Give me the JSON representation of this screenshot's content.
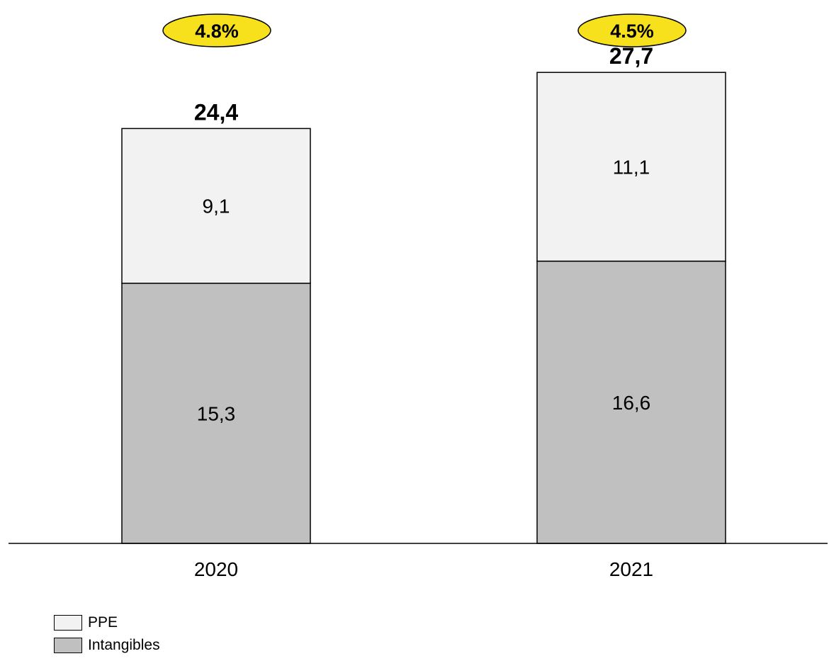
{
  "chart_data": {
    "type": "bar",
    "stacked": true,
    "categories": [
      "2020",
      "2021"
    ],
    "series": [
      {
        "name": "Intangibles",
        "values": [
          15.3,
          16.6
        ],
        "labels": [
          "15,3",
          "16,6"
        ],
        "color": "#c0c0c0"
      },
      {
        "name": "PPE",
        "values": [
          9.1,
          11.1
        ],
        "labels": [
          "9,1",
          "11,1"
        ],
        "color": "#f2f2f2"
      }
    ],
    "totals": [
      24.4,
      27.7
    ],
    "total_labels": [
      "24,4",
      "27,7"
    ],
    "badges": [
      "4.8%",
      "4.5%"
    ],
    "badge_color": "#f7e01c",
    "title": "",
    "xlabel": "",
    "ylabel": "",
    "ylim": [
      0,
      30
    ],
    "grid": false,
    "legend_position": "bottom-left"
  },
  "legend": {
    "items": [
      {
        "label": "PPE",
        "color": "#f2f2f2"
      },
      {
        "label": "Intangibles",
        "color": "#c0c0c0"
      }
    ]
  }
}
